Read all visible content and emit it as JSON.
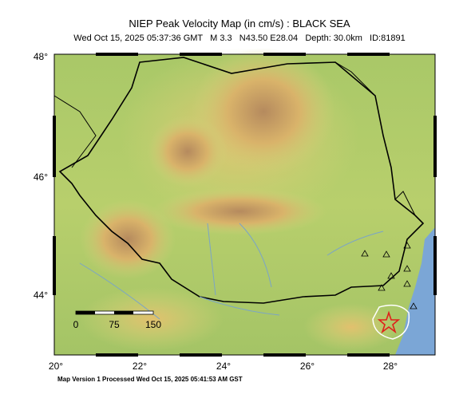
{
  "header": {
    "title": "NIEP Peak Velocity Map (in cm/s) : BLACK SEA",
    "subtitle": "Wed Oct 15, 2025 05:37:36 GMT   M 3.3   N43.50 E28.04   Depth: 30.0km   ID:81891"
  },
  "axes": {
    "lat_labels": [
      "48°",
      "46°",
      "44°"
    ],
    "lon_labels": [
      "20°",
      "22°",
      "24°",
      "26°",
      "28°"
    ]
  },
  "scale_bar": {
    "labels": [
      "0",
      "75",
      "150"
    ]
  },
  "footer": "Map Version 1 Processed Wed Oct 15, 2025 05:41:53 AM GST"
}
